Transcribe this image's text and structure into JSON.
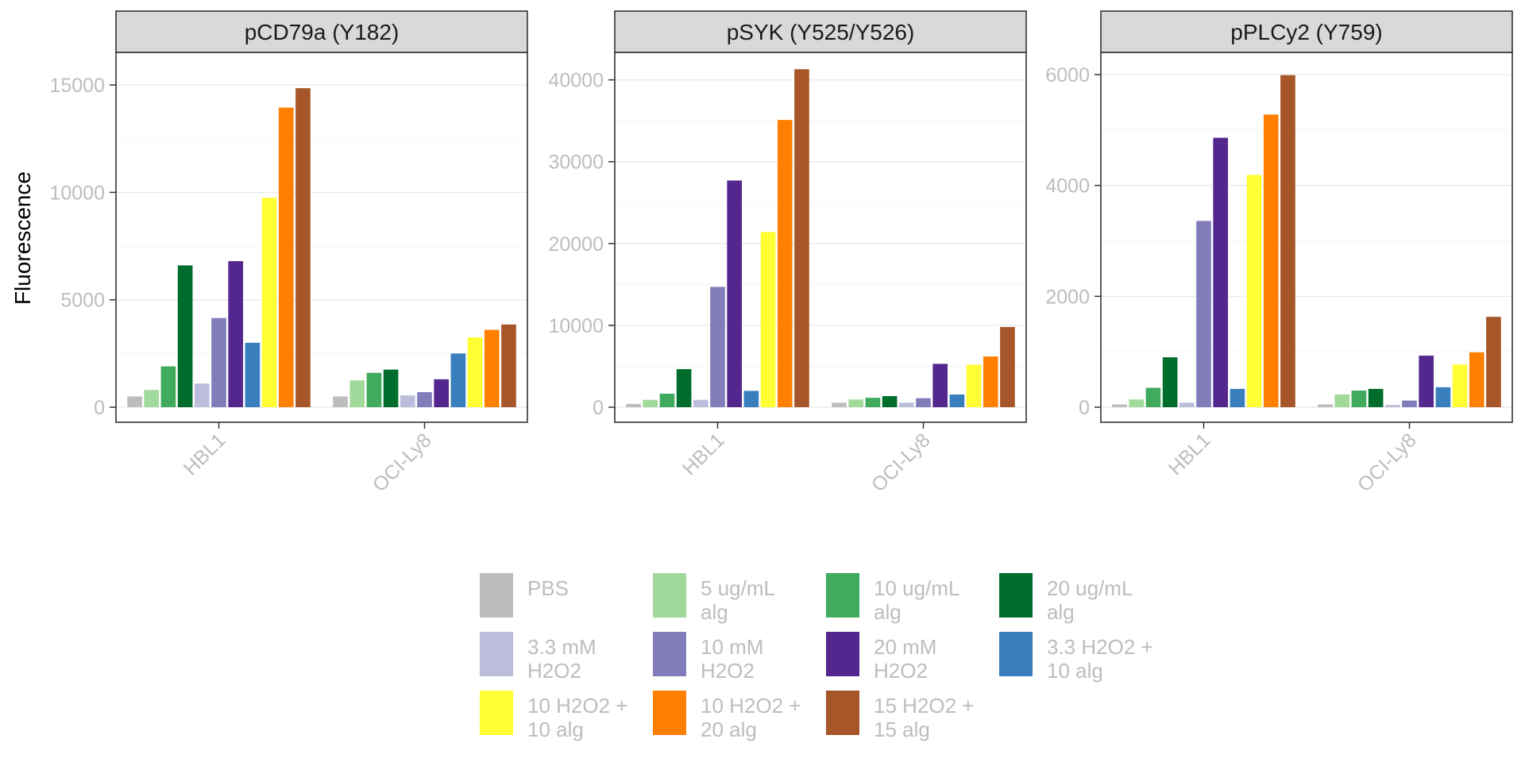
{
  "chart_data": [
    {
      "type": "bar",
      "title": "pCD79a (Y182)",
      "ylabel": "Fluorescence",
      "xlabel": "",
      "categories": [
        "HBL1",
        "OCI-Ly8"
      ],
      "ylim": [
        0,
        16000
      ],
      "yticks": [
        0,
        5000,
        10000,
        15000
      ],
      "series": [
        {
          "name": "PBS",
          "color": "#bdbdbd",
          "values": [
            500,
            500
          ]
        },
        {
          "name": "5 ug/mL\nalg",
          "color": "#a1d99b",
          "values": [
            800,
            1250
          ]
        },
        {
          "name": "10 ug/mL\nalg",
          "color": "#41ab5d",
          "values": [
            1900,
            1600
          ]
        },
        {
          "name": "20 ug/mL\nalg",
          "color": "#006d2c",
          "values": [
            6600,
            1750
          ]
        },
        {
          "name": "3.3 mM\nH2O2",
          "color": "#bcbddc",
          "values": [
            1100,
            550
          ]
        },
        {
          "name": "10 mM\nH2O2",
          "color": "#807dba",
          "values": [
            4150,
            700
          ]
        },
        {
          "name": "20 mM\nH2O2",
          "color": "#54278f",
          "values": [
            6800,
            1300
          ]
        },
        {
          "name": "3.3 H2O2 +\n10 alg",
          "color": "#3a7fbd",
          "values": [
            3000,
            2500
          ]
        },
        {
          "name": "10 H2O2 +\n10 alg",
          "color": "#ffff33",
          "values": [
            9750,
            3250
          ]
        },
        {
          "name": "10 H2O2 +\n20 alg",
          "color": "#ff7f00",
          "values": [
            13950,
            3600
          ]
        },
        {
          "name": "15 H2O2 +\n15 alg",
          "color": "#a65628",
          "values": [
            14850,
            3850
          ]
        }
      ]
    },
    {
      "type": "bar",
      "title": "pSYK (Y525/Y526)",
      "ylabel": "Fluorescence",
      "xlabel": "",
      "categories": [
        "HBL1",
        "OCI-Ly8"
      ],
      "ylim": [
        0,
        42000
      ],
      "yticks": [
        0,
        10000,
        20000,
        30000,
        40000
      ],
      "series": [
        {
          "name": "PBS",
          "color": "#bdbdbd",
          "values": [
            400,
            550
          ]
        },
        {
          "name": "5 ug/mL\nalg",
          "color": "#a1d99b",
          "values": [
            900,
            950
          ]
        },
        {
          "name": "10 ug/mL\nalg",
          "color": "#41ab5d",
          "values": [
            1650,
            1150
          ]
        },
        {
          "name": "20 ug/mL\nalg",
          "color": "#006d2c",
          "values": [
            4650,
            1350
          ]
        },
        {
          "name": "3.3 mM\nH2O2",
          "color": "#bcbddc",
          "values": [
            900,
            550
          ]
        },
        {
          "name": "10 mM\nH2O2",
          "color": "#807dba",
          "values": [
            14700,
            1100
          ]
        },
        {
          "name": "20 mM\nH2O2",
          "color": "#54278f",
          "values": [
            27700,
            5300
          ]
        },
        {
          "name": "3.3 H2O2 +\n10 alg",
          "color": "#3a7fbd",
          "values": [
            2000,
            1550
          ]
        },
        {
          "name": "10 H2O2 +\n10 alg",
          "color": "#ffff33",
          "values": [
            21400,
            5200
          ]
        },
        {
          "name": "10 H2O2 +\n20 alg",
          "color": "#ff7f00",
          "values": [
            35100,
            6200
          ]
        },
        {
          "name": "15 H2O2 +\n15 alg",
          "color": "#a65628",
          "values": [
            41300,
            9800
          ]
        }
      ]
    },
    {
      "type": "bar",
      "title": "pPLCy2 (Y759)",
      "ylabel": "Fluorescence",
      "xlabel": "",
      "categories": [
        "HBL1",
        "OCI-Ly8"
      ],
      "ylim": [
        0,
        6200
      ],
      "yticks": [
        0,
        2000,
        4000,
        6000
      ],
      "series": [
        {
          "name": "PBS",
          "color": "#bdbdbd",
          "values": [
            50,
            50
          ]
        },
        {
          "name": "5 ug/mL\nalg",
          "color": "#a1d99b",
          "values": [
            140,
            230
          ]
        },
        {
          "name": "10 ug/mL\nalg",
          "color": "#41ab5d",
          "values": [
            350,
            300
          ]
        },
        {
          "name": "20 ug/mL\nalg",
          "color": "#006d2c",
          "values": [
            900,
            330
          ]
        },
        {
          "name": "3.3 mM\nH2O2",
          "color": "#bcbddc",
          "values": [
            80,
            40
          ]
        },
        {
          "name": "10 mM\nH2O2",
          "color": "#807dba",
          "values": [
            3360,
            120
          ]
        },
        {
          "name": "20 mM\nH2O2",
          "color": "#54278f",
          "values": [
            4860,
            930
          ]
        },
        {
          "name": "3.3 H2O2 +\n10 alg",
          "color": "#3a7fbd",
          "values": [
            330,
            360
          ]
        },
        {
          "name": "10 H2O2 +\n10 alg",
          "color": "#ffff33",
          "values": [
            4190,
            770
          ]
        },
        {
          "name": "10 H2O2 +\n20 alg",
          "color": "#ff7f00",
          "values": [
            5280,
            990
          ]
        },
        {
          "name": "15 H2O2 +\n15 alg",
          "color": "#a65628",
          "values": [
            5990,
            1630
          ]
        }
      ]
    }
  ],
  "legend": {
    "placement": "bottom",
    "items": [
      {
        "label": "PBS",
        "color": "#bdbdbd"
      },
      {
        "label": "5 ug/mL\nalg",
        "color": "#a1d99b"
      },
      {
        "label": "10 ug/mL\nalg",
        "color": "#41ab5d"
      },
      {
        "label": "20 ug/mL\nalg",
        "color": "#006d2c"
      },
      {
        "label": "3.3 mM\nH2O2",
        "color": "#bcbddc"
      },
      {
        "label": "10 mM\nH2O2",
        "color": "#807dba"
      },
      {
        "label": "20 mM\nH2O2",
        "color": "#54278f"
      },
      {
        "label": "3.3 H2O2 +\n10 alg",
        "color": "#3a7fbd"
      },
      {
        "label": "10 H2O2 +\n10 alg",
        "color": "#ffff33"
      },
      {
        "label": "10 H2O2 +\n20 alg",
        "color": "#ff7f00"
      },
      {
        "label": "15 H2O2 +\n15 alg",
        "color": "#a65628"
      }
    ]
  },
  "y_axis_title": "Fluorescence"
}
